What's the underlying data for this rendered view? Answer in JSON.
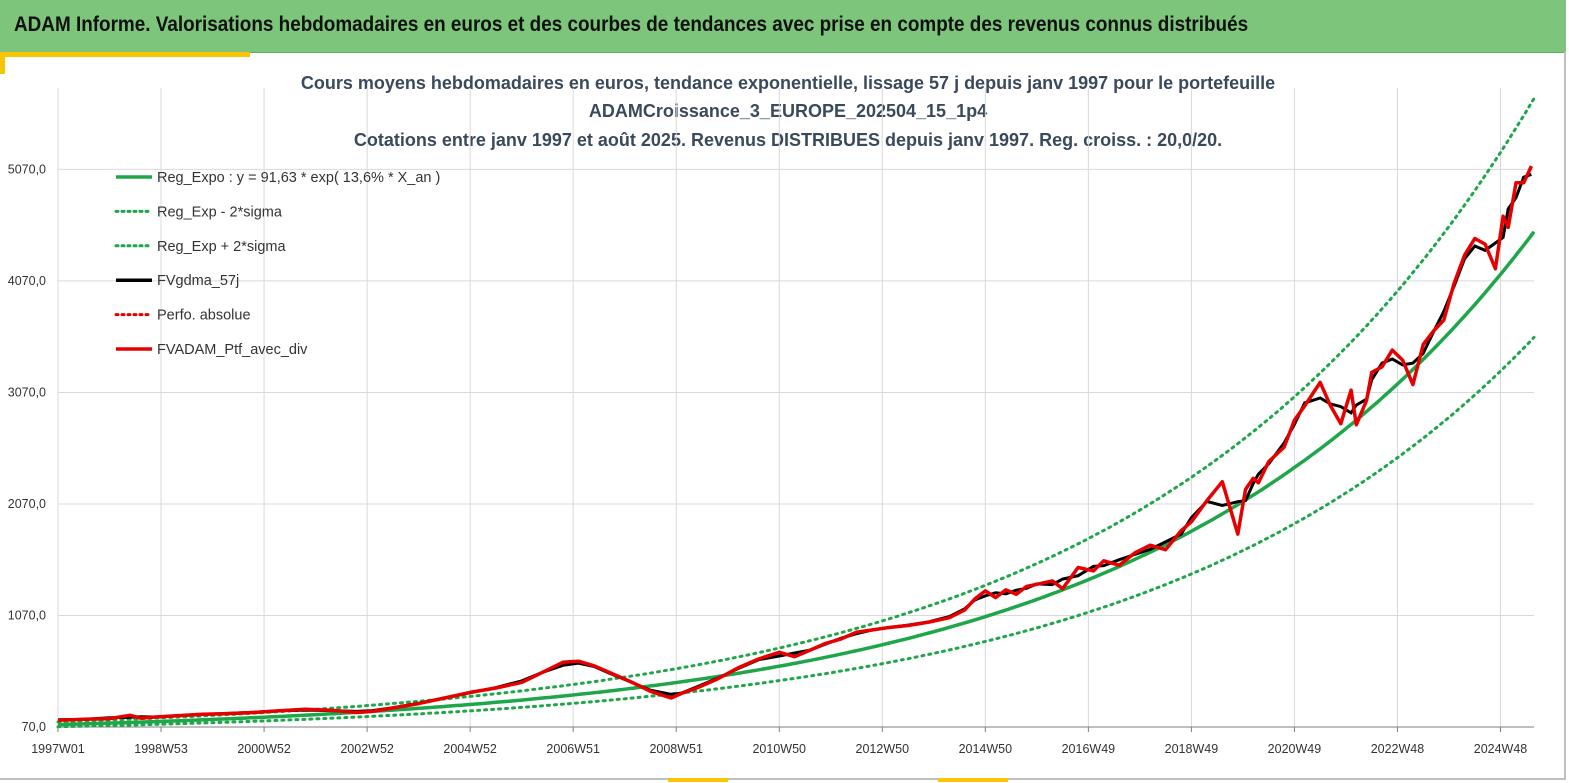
{
  "banner": {
    "title": "ADAM Informe. Valorisations hebdomadaires en euros et des courbes de tendances avec prise en compte des revenus connus distribués"
  },
  "colors": {
    "banner_bg": "#7cc57a",
    "accent": "#f7c600",
    "trend": "#1fa64a",
    "band": "#1fa64a",
    "smoothed": "#000000",
    "portfolio": "#e60000"
  },
  "chart_data": {
    "type": "line",
    "title_lines": [
      "Cours moyens hebdomadaires  en euros, tendance exponentielle, lissage 57 j depuis janv 1997 pour le portefeuille",
      "ADAMCroissance_3_EUROPE_202504_15_1p4",
      "Cotations  entre janv 1997 et août 2025. Revenus DISTRIBUES depuis janv 1997. Reg. croiss. : 20,0/20."
    ],
    "xlabel": "",
    "ylabel": "",
    "x_tick_labels": [
      "1997W01",
      "1998W53",
      "2000W52",
      "2002W52",
      "2004W52",
      "2006W51",
      "2008W51",
      "2010W50",
      "2012W50",
      "2014W50",
      "2016W49",
      "2018W49",
      "2020W49",
      "2022W48",
      "2024W48"
    ],
    "x_tick_years": [
      1997.0,
      1999.0,
      2001.0,
      2003.0,
      2005.0,
      2007.0,
      2009.0,
      2011.0,
      2013.0,
      2015.0,
      2017.0,
      2019.0,
      2021.0,
      2023.0,
      2025.0
    ],
    "x_range": [
      1997.0,
      2025.65
    ],
    "y_tick_labels": [
      "70,0",
      "1070,0",
      "2070,0",
      "3070,0",
      "4070,0",
      "5070,0"
    ],
    "y_ticks": [
      70,
      1070,
      2070,
      3070,
      4070,
      5070
    ],
    "ylim": [
      70,
      5800
    ],
    "grid": true,
    "legend_position": "top-left",
    "trend_equation": {
      "a": 91.63,
      "rate": 0.136,
      "x0": 1997.0
    },
    "band_factors": {
      "lower": 0.79,
      "upper": 1.265
    },
    "series": [
      {
        "name": "Reg_Expo : y = 91,63 * exp( 13,6% *  X_an )",
        "kind": "trend",
        "style": "solid",
        "color": "#1fa64a"
      },
      {
        "name": "Reg_Exp - 2*sigma",
        "kind": "lower",
        "style": "dotted",
        "color": "#1fa64a"
      },
      {
        "name": "Reg_Exp + 2*sigma",
        "kind": "upper",
        "style": "dotted",
        "color": "#1fa64a"
      },
      {
        "name": "FVgdma_57j",
        "kind": "smoothed",
        "style": "solid",
        "color": "#000000"
      },
      {
        "name": "Perfo. absolue",
        "kind": "absolute",
        "style": "dotted",
        "color": "#e60000"
      },
      {
        "name": "FVADAM_Ptf_avec_div",
        "kind": "portfolio",
        "style": "solid",
        "color": "#e60000",
        "x": [
          1997.0,
          1997.5,
          1998.0,
          1998.4,
          1998.6,
          1998.9,
          1999.3,
          1999.8,
          2000.3,
          2000.8,
          2001.3,
          2001.8,
          2002.3,
          2002.8,
          2003.1,
          2003.5,
          2004.0,
          2004.5,
          2005.0,
          2005.5,
          2006.0,
          2006.4,
          2006.8,
          2007.1,
          2007.4,
          2007.7,
          2008.1,
          2008.5,
          2008.9,
          2009.1,
          2009.4,
          2009.8,
          2010.2,
          2010.6,
          2011.0,
          2011.3,
          2011.6,
          2011.9,
          2012.2,
          2012.5,
          2012.8,
          2013.1,
          2013.5,
          2013.9,
          2014.3,
          2014.6,
          2014.8,
          2015.0,
          2015.2,
          2015.4,
          2015.6,
          2015.8,
          2016.0,
          2016.3,
          2016.5,
          2016.8,
          2017.1,
          2017.3,
          2017.6,
          2017.9,
          2018.2,
          2018.5,
          2018.8,
          2019.0,
          2019.3,
          2019.6,
          2019.9,
          2020.05,
          2020.2,
          2020.3,
          2020.5,
          2020.8,
          2021.0,
          2021.2,
          2021.5,
          2021.7,
          2021.9,
          2022.1,
          2022.2,
          2022.4,
          2022.5,
          2022.7,
          2022.9,
          2023.1,
          2023.3,
          2023.5,
          2023.7,
          2023.9,
          2024.1,
          2024.3,
          2024.5,
          2024.7,
          2024.9,
          2025.05,
          2025.15,
          2025.3,
          2025.45,
          2025.6
        ],
        "y": [
          130,
          140,
          145,
          175,
          150,
          160,
          170,
          185,
          190,
          200,
          215,
          230,
          220,
          200,
          210,
          240,
          280,
          330,
          380,
          420,
          470,
          560,
          650,
          660,
          620,
          560,
          480,
          390,
          330,
          370,
          420,
          500,
          600,
          680,
          740,
          700,
          760,
          820,
          860,
          920,
          940,
          960,
          980,
          1010,
          1050,
          1120,
          1220,
          1290,
          1230,
          1300,
          1260,
          1330,
          1350,
          1380,
          1310,
          1500,
          1470,
          1560,
          1520,
          1630,
          1700,
          1660,
          1830,
          1910,
          2100,
          2270,
          1800,
          2200,
          2300,
          2260,
          2450,
          2580,
          2820,
          2950,
          3160,
          2950,
          2790,
          3090,
          2780,
          3000,
          3250,
          3300,
          3450,
          3360,
          3140,
          3500,
          3620,
          3720,
          4050,
          4300,
          4450,
          4400,
          4180,
          4650,
          4550,
          4950,
          4950,
          5100
        ]
      }
    ]
  }
}
